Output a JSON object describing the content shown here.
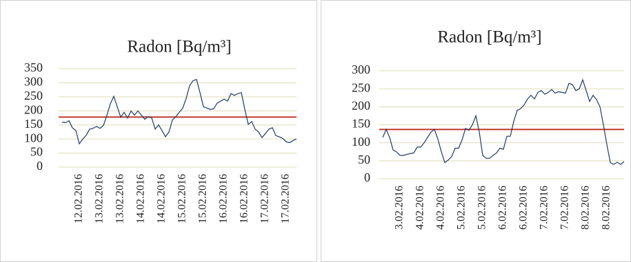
{
  "chart_data": [
    {
      "type": "line",
      "title": "Radon [Bq/m³]",
      "categories": [
        null,
        null,
        null,
        null,
        null,
        "12.02.2016",
        null,
        null,
        null,
        null,
        null,
        "13.02.2016",
        null,
        null,
        null,
        null,
        null,
        "13.02.2016",
        null,
        null,
        null,
        null,
        null,
        "14.02.2016",
        null,
        null,
        null,
        null,
        null,
        "14.02.2016",
        null,
        null,
        null,
        null,
        null,
        "15.02.2016",
        null,
        null,
        null,
        null,
        null,
        "15.02.2016",
        null,
        null,
        null,
        null,
        null,
        "16.02.2016",
        null,
        null,
        null,
        null,
        null,
        "16.02.2016",
        null,
        null,
        null,
        null,
        null,
        "17.02.2016",
        null,
        null,
        null,
        null,
        null,
        "17.02.2016",
        null,
        null,
        null
      ],
      "series": [
        {
          "color": "#1f3864",
          "values": [
            160,
            158,
            165,
            140,
            130,
            83,
            100,
            113,
            135,
            138,
            145,
            138,
            148,
            185,
            225,
            252,
            215,
            178,
            195,
            175,
            200,
            185,
            200,
            185,
            170,
            180,
            175,
            135,
            150,
            130,
            108,
            125,
            168,
            180,
            195,
            210,
            245,
            290,
            308,
            312,
            265,
            215,
            210,
            205,
            208,
            228,
            235,
            242,
            235,
            262,
            255,
            262,
            265,
            205,
            152,
            162,
            135,
            125,
            105,
            120,
            135,
            140,
            112,
            108,
            102,
            90,
            87,
            95,
            100
          ]
        }
      ],
      "reference_line": {
        "value": 178,
        "color": "#c0392b"
      },
      "ylim": [
        0,
        350
      ],
      "yticks": [
        0,
        50,
        100,
        150,
        200,
        250,
        300,
        350
      ],
      "grid": true,
      "grid_color": "#dedcb6"
    },
    {
      "type": "line",
      "title": "Radon [Bq/m³]",
      "categories": [
        null,
        null,
        null,
        null,
        null,
        "3.02.2016",
        null,
        null,
        null,
        null,
        null,
        "4.02.2016",
        null,
        null,
        null,
        null,
        null,
        "4.02.2016",
        null,
        null,
        null,
        null,
        null,
        "5.02.2016",
        null,
        null,
        null,
        null,
        null,
        "5.02.2016",
        null,
        null,
        null,
        null,
        null,
        "6.02.2016",
        null,
        null,
        null,
        null,
        null,
        "6.02.2016",
        null,
        null,
        null,
        null,
        null,
        "7.02.2016",
        null,
        null,
        null,
        null,
        null,
        "7.02.2016",
        null,
        null,
        null,
        null,
        null,
        "8.02.2016",
        null,
        null,
        null,
        null,
        null,
        "8.02.2016",
        null,
        null,
        null,
        null,
        null
      ],
      "series": [
        {
          "color": "#1f3864",
          "values": [
            115,
            137,
            115,
            80,
            75,
            65,
            65,
            68,
            70,
            72,
            88,
            88,
            100,
            115,
            130,
            137,
            110,
            75,
            45,
            52,
            62,
            85,
            85,
            108,
            140,
            135,
            150,
            175,
            130,
            65,
            57,
            57,
            65,
            72,
            85,
            82,
            118,
            118,
            160,
            190,
            195,
            205,
            222,
            232,
            222,
            240,
            245,
            235,
            240,
            248,
            238,
            242,
            240,
            238,
            265,
            262,
            245,
            250,
            275,
            245,
            215,
            232,
            220,
            200,
            150,
            95,
            45,
            40,
            46,
            40,
            48
          ]
        }
      ],
      "reference_line": {
        "value": 137,
        "color": "#c0392b"
      },
      "ylim": [
        0,
        300
      ],
      "yticks": [
        0,
        50,
        100,
        150,
        200,
        250,
        300
      ],
      "grid": true,
      "grid_color": "#dedcb6"
    }
  ]
}
